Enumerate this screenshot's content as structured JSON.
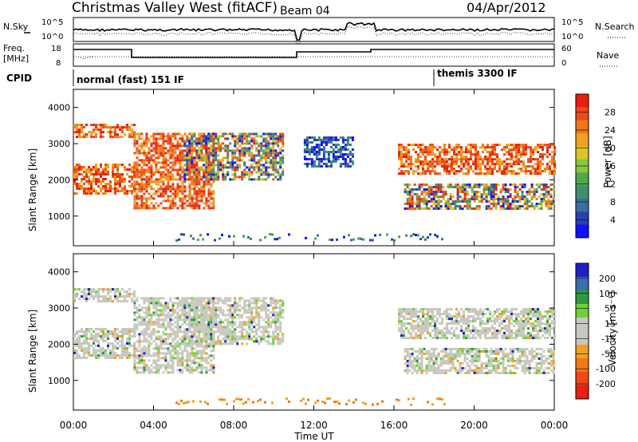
{
  "header": {
    "title": "Christmas Valley West (fitACF)",
    "beam": "Beam 04",
    "date": "04/Apr/2012"
  },
  "sky_panel": {
    "left_label": "N.Sky",
    "right_label": "N.Search",
    "left_ticks": [
      "10^5",
      "10^0"
    ],
    "right_ticks": [
      "10^5",
      "10^0"
    ]
  },
  "freq_panel": {
    "left_label_1": "Freq.",
    "left_label_2": "[MHz]",
    "left_ticks": [
      "18",
      "8"
    ],
    "right_label": "Nave",
    "right_ticks": [
      "60",
      "0"
    ]
  },
  "cpid_panel": {
    "label": "CPID",
    "modes": [
      "normal (fast) 151 IF",
      "themis 3300 IF"
    ]
  },
  "chart_data": [
    {
      "type": "heatmap",
      "name": "power",
      "xlabel": "",
      "ylabel": "Slant Range [km]",
      "yticks": [
        "1000",
        "2000",
        "3000",
        "4000"
      ],
      "ylim": [
        180,
        4500
      ],
      "xlim": [
        0,
        24
      ],
      "colorbar": {
        "label": "Power [dB]",
        "ticks": [
          "4",
          "8",
          "12",
          "16",
          "20",
          "24",
          "28"
        ],
        "colors": [
          "#1010ff",
          "#2a40b0",
          "#3a6fa0",
          "#3f8f70",
          "#54a84a",
          "#8cc43c",
          "#d6c62a",
          "#f0a020",
          "#f07818",
          "#f04818",
          "#e82010"
        ]
      },
      "bands": [
        {
          "t_start": 0.0,
          "t_end": 3.0,
          "range_start": 3200,
          "range_end": 3550,
          "level": "high"
        },
        {
          "t_start": 0.0,
          "t_end": 3.0,
          "range_start": 1650,
          "range_end": 2450,
          "level": "high"
        },
        {
          "t_start": 3.0,
          "t_end": 7.0,
          "range_start": 1250,
          "range_end": 3300,
          "level": "high"
        },
        {
          "t_start": 5.5,
          "t_end": 10.5,
          "range_start": 2000,
          "range_end": 3300,
          "level": "mixed"
        },
        {
          "t_start": 11.5,
          "t_end": 14.0,
          "range_start": 2400,
          "range_end": 3200,
          "level": "low"
        },
        {
          "t_start": 16.2,
          "t_end": 24.0,
          "range_start": 2150,
          "range_end": 3000,
          "level": "high"
        },
        {
          "t_start": 16.5,
          "t_end": 24.0,
          "range_start": 1200,
          "range_end": 1900,
          "level": "mixed"
        }
      ]
    },
    {
      "type": "heatmap",
      "name": "velocity",
      "xlabel": "Time UT",
      "ylabel": "Slant Range [km]",
      "yticks": [
        "1000",
        "2000",
        "3000",
        "4000"
      ],
      "xticks": [
        "00:00",
        "04:00",
        "08:00",
        "12:00",
        "16:00",
        "20:00",
        "00:00"
      ],
      "ylim": [
        180,
        4500
      ],
      "xlim": [
        0,
        24
      ],
      "colorbar": {
        "label": "Velocity [m s⁻¹]",
        "ticks": [
          "200",
          "100",
          "50",
          "15",
          "-15",
          "-50",
          "-100",
          "-200"
        ],
        "colors": [
          "#2020c8",
          "#3a6fb0",
          "#2e9a40",
          "#6fd03a",
          "#c8c8c0",
          "#c8c8c0",
          "#f0a020",
          "#f07818",
          "#f04818",
          "#e82010"
        ]
      },
      "bands": [
        {
          "t_start": 0.0,
          "t_end": 3.0,
          "range_start": 3200,
          "range_end": 3550,
          "level": "zero"
        },
        {
          "t_start": 0.0,
          "t_end": 3.0,
          "range_start": 1650,
          "range_end": 2450,
          "level": "zero"
        },
        {
          "t_start": 3.0,
          "t_end": 7.0,
          "range_start": 1250,
          "range_end": 3300,
          "level": "zero"
        },
        {
          "t_start": 5.5,
          "t_end": 10.5,
          "range_start": 2000,
          "range_end": 3300,
          "level": "zero"
        },
        {
          "t_start": 16.2,
          "t_end": 24.0,
          "range_start": 2150,
          "range_end": 3000,
          "level": "zero"
        },
        {
          "t_start": 16.5,
          "t_end": 24.0,
          "range_start": 1200,
          "range_end": 1900,
          "level": "zero"
        }
      ]
    }
  ]
}
